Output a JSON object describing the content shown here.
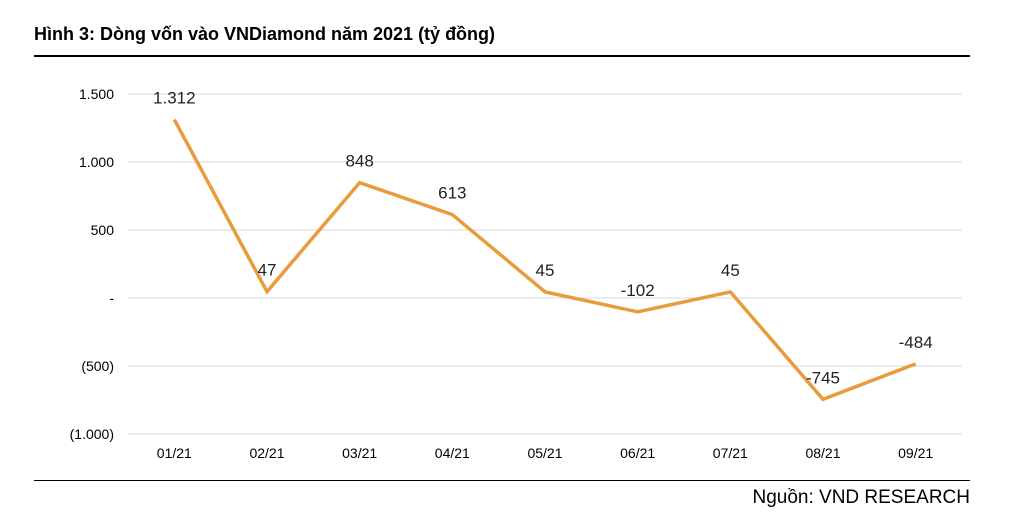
{
  "title": "Hình 3: Dòng vốn vào VNDiamond năm 2021 (tỷ đồng)",
  "source": "Nguồn: VND RESEARCH",
  "chart_data": {
    "type": "line",
    "categories": [
      "01/21",
      "02/21",
      "03/21",
      "04/21",
      "05/21",
      "06/21",
      "07/21",
      "08/21",
      "09/21"
    ],
    "values": [
      1312,
      47,
      848,
      613,
      45,
      -102,
      45,
      -745,
      -484
    ],
    "data_labels": [
      "1.312",
      "47",
      "848",
      "613",
      "45",
      "-102",
      "45",
      "-745",
      "-484"
    ],
    "ylim": [
      -1000,
      1500
    ],
    "yticks": [
      1500,
      1000,
      500,
      0,
      -500,
      -1000
    ],
    "ytick_labels": [
      "1.500",
      "1.000",
      "500",
      "-",
      "(500)",
      "(1.000)"
    ],
    "line_color": "#E89C3C",
    "grid": true
  }
}
